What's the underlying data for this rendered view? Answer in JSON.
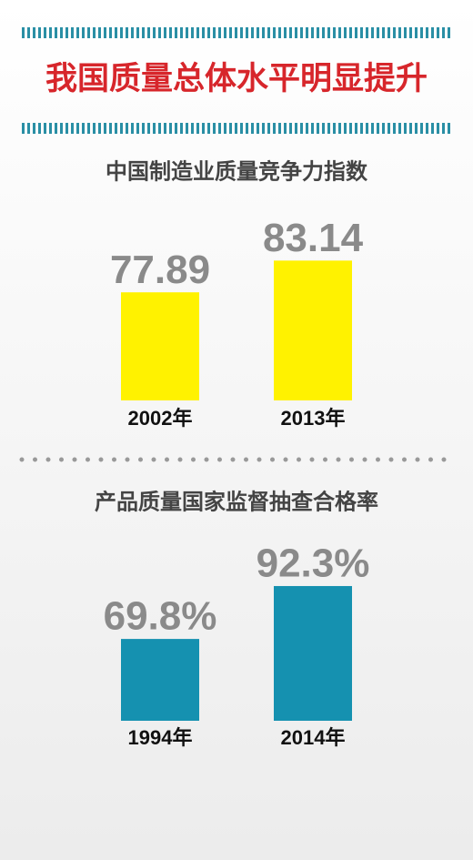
{
  "title": "我国质量总体水平明显提升",
  "chart_data": [
    {
      "type": "bar",
      "title": "中国制造业质量竞争力指数",
      "categories": [
        "2002年",
        "2013年"
      ],
      "values": [
        77.89,
        83.14
      ],
      "color": "#fff200",
      "ylim": [
        60,
        85
      ]
    },
    {
      "type": "bar",
      "title": "产品质量国家监督抽查合格率",
      "categories": [
        "1994年",
        "2014年"
      ],
      "values": [
        69.8,
        92.3
      ],
      "value_labels": [
        "69.8%",
        "92.3%"
      ],
      "color": "#1591b0",
      "ylim": [
        35,
        95
      ]
    }
  ]
}
